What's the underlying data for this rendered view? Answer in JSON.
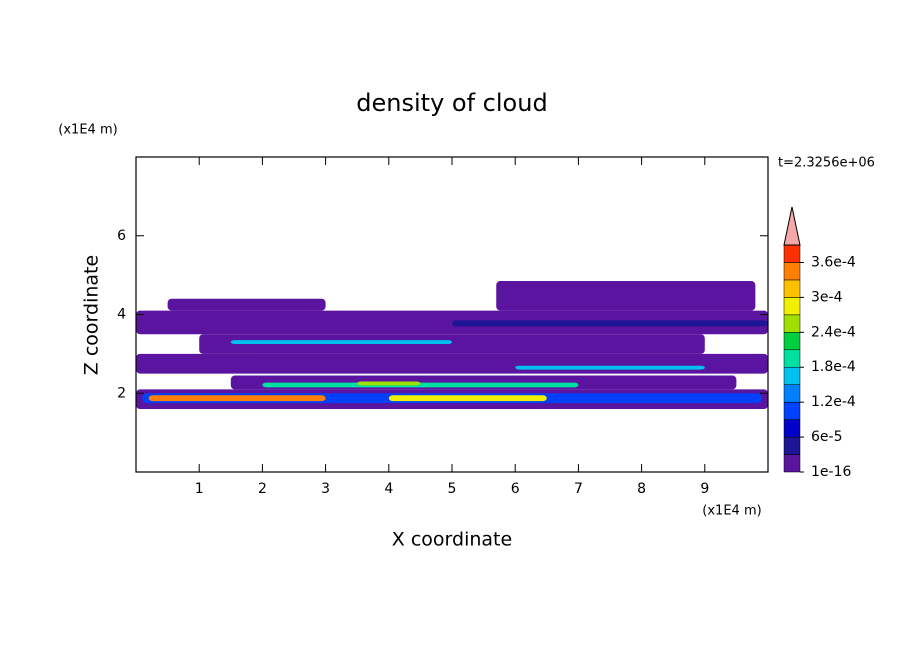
{
  "chart_data": {
    "type": "contour",
    "title": "density of cloud",
    "x_label": "X coordinate",
    "y_label": "Z coordinate",
    "x_unit": "(x1E4 m)",
    "y_unit": "(x1E4 m)",
    "annotation": "t=2.3256e+06",
    "xlim": [
      0,
      10
    ],
    "ylim": [
      0,
      8
    ],
    "xticks": [
      1,
      2,
      3,
      4,
      5,
      6,
      7,
      8,
      9
    ],
    "yticks": [
      2,
      4,
      6
    ],
    "colorbar": {
      "levels": [
        1e-16,
        3e-05,
        6e-05,
        9e-05,
        0.00012,
        0.00015,
        0.00018,
        0.00021,
        0.00024,
        0.00027,
        0.0003,
        0.00033,
        0.00036,
        0.00039
      ],
      "colors": [
        "#5a14a0",
        "#1e1496",
        "#0000c8",
        "#0040ff",
        "#0080ff",
        "#00c0f0",
        "#00e0a0",
        "#00d040",
        "#a0e000",
        "#f0f000",
        "#ffc000",
        "#ff8000",
        "#ff3000"
      ],
      "extend_color": "#f4a8a8",
      "ticks": [
        {
          "value": 1e-16,
          "label": "1e-16"
        },
        {
          "value": 6e-05,
          "label": "6e-5"
        },
        {
          "value": 0.00012,
          "label": "1.2e-4"
        },
        {
          "value": 0.00018,
          "label": "1.8e-4"
        },
        {
          "value": 0.00024,
          "label": "2.4e-4"
        },
        {
          "value": 0.0003,
          "label": "3e-4"
        },
        {
          "value": 0.00036,
          "label": "3.6e-4"
        }
      ]
    },
    "patches": [
      {
        "x": [
          0,
          10
        ],
        "z": [
          1.6,
          2.1
        ],
        "value": 1e-05
      },
      {
        "x": [
          0.1,
          9.9
        ],
        "z": [
          1.75,
          2.0
        ],
        "value": 0.0001
      },
      {
        "x": [
          0.2,
          3.0
        ],
        "z": [
          1.8,
          1.95
        ],
        "value": 0.00034
      },
      {
        "x": [
          4.0,
          6.5
        ],
        "z": [
          1.8,
          1.95
        ],
        "value": 0.00028
      },
      {
        "x": [
          1.5,
          9.5
        ],
        "z": [
          2.1,
          2.45
        ],
        "value": 1e-05
      },
      {
        "x": [
          2.0,
          7.0
        ],
        "z": [
          2.15,
          2.27
        ],
        "value": 0.0002
      },
      {
        "x": [
          3.5,
          4.5
        ],
        "z": [
          2.2,
          2.3
        ],
        "value": 0.00025
      },
      {
        "x": [
          0,
          10
        ],
        "z": [
          2.5,
          3.0
        ],
        "value": 1e-05
      },
      {
        "x": [
          6.0,
          9.0
        ],
        "z": [
          2.6,
          2.7
        ],
        "value": 0.00016
      },
      {
        "x": [
          1.0,
          9.0
        ],
        "z": [
          3.0,
          3.5
        ],
        "value": 1e-05
      },
      {
        "x": [
          1.5,
          5.0
        ],
        "z": [
          3.25,
          3.35
        ],
        "value": 0.00016
      },
      {
        "x": [
          0,
          10
        ],
        "z": [
          3.5,
          4.1
        ],
        "value": 1e-05
      },
      {
        "x": [
          5.0,
          10
        ],
        "z": [
          3.7,
          3.85
        ],
        "value": 5e-05
      },
      {
        "x": [
          0.5,
          3.0
        ],
        "z": [
          4.1,
          4.4
        ],
        "value": 1e-05
      },
      {
        "x": [
          5.7,
          9.8
        ],
        "z": [
          4.1,
          4.85
        ],
        "value": 1e-05
      }
    ]
  }
}
